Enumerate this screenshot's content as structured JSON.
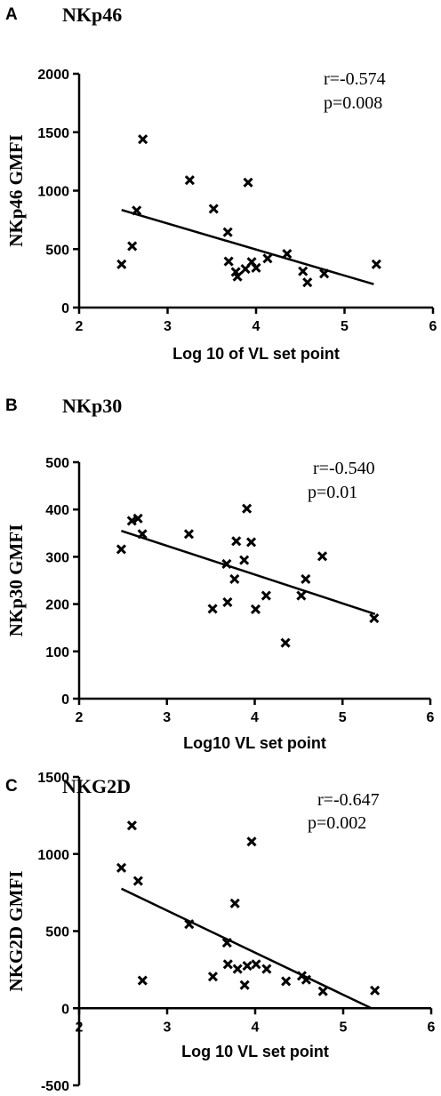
{
  "panels": [
    {
      "letter": "A",
      "title": "NKp46",
      "r_text": "r=-0.574",
      "p_text": "p=0.008"
    },
    {
      "letter": "B",
      "title": "NKp30",
      "r_text": "r=-0.540",
      "p_text": "p=0.01"
    },
    {
      "letter": "C",
      "title": "NKG2D",
      "r_text": "r=-0.647",
      "p_text": "p=0.002"
    }
  ],
  "chart_data": [
    {
      "type": "scatter",
      "title": "NKp46",
      "xlabel": "Log 10 of VL set point",
      "ylabel": "NKp46 GMFI",
      "xlim": [
        2,
        6
      ],
      "ylim": [
        0,
        2000
      ],
      "xticks": [
        2,
        3,
        4,
        5,
        6
      ],
      "yticks": [
        0,
        500,
        1000,
        1500,
        2000
      ],
      "marker": "x",
      "points": [
        {
          "x": 2.48,
          "y": 370
        },
        {
          "x": 2.6,
          "y": 525
        },
        {
          "x": 2.65,
          "y": 830
        },
        {
          "x": 2.72,
          "y": 1440
        },
        {
          "x": 3.25,
          "y": 1090
        },
        {
          "x": 3.52,
          "y": 845
        },
        {
          "x": 3.68,
          "y": 645
        },
        {
          "x": 3.69,
          "y": 395
        },
        {
          "x": 3.77,
          "y": 305
        },
        {
          "x": 3.79,
          "y": 265
        },
        {
          "x": 3.88,
          "y": 330
        },
        {
          "x": 3.91,
          "y": 1070
        },
        {
          "x": 3.95,
          "y": 390
        },
        {
          "x": 4.0,
          "y": 340
        },
        {
          "x": 4.13,
          "y": 420
        },
        {
          "x": 4.35,
          "y": 460
        },
        {
          "x": 4.53,
          "y": 310
        },
        {
          "x": 4.58,
          "y": 215
        },
        {
          "x": 4.77,
          "y": 290
        },
        {
          "x": 5.36,
          "y": 370
        }
      ],
      "fit_line": {
        "x": [
          2.48,
          5.33
        ],
        "y": [
          835,
          200
        ]
      },
      "annotations": [
        "r=-0.574",
        "p=0.008"
      ]
    },
    {
      "type": "scatter",
      "title": "NKp30",
      "xlabel": "Log10 VL set point",
      "ylabel": "NKp30 GMFI",
      "xlim": [
        2,
        6
      ],
      "ylim": [
        0,
        500
      ],
      "xticks": [
        2,
        3,
        4,
        5,
        6
      ],
      "yticks": [
        0,
        100,
        200,
        300,
        400,
        500
      ],
      "marker": "x",
      "points": [
        {
          "x": 2.48,
          "y": 316
        },
        {
          "x": 2.6,
          "y": 376
        },
        {
          "x": 2.67,
          "y": 381
        },
        {
          "x": 2.72,
          "y": 348
        },
        {
          "x": 3.25,
          "y": 348
        },
        {
          "x": 3.52,
          "y": 190
        },
        {
          "x": 3.68,
          "y": 285
        },
        {
          "x": 3.69,
          "y": 204
        },
        {
          "x": 3.77,
          "y": 253
        },
        {
          "x": 3.79,
          "y": 333
        },
        {
          "x": 3.88,
          "y": 293
        },
        {
          "x": 3.91,
          "y": 402
        },
        {
          "x": 3.96,
          "y": 331
        },
        {
          "x": 4.01,
          "y": 189
        },
        {
          "x": 4.13,
          "y": 218
        },
        {
          "x": 4.35,
          "y": 118
        },
        {
          "x": 4.53,
          "y": 218
        },
        {
          "x": 4.58,
          "y": 253
        },
        {
          "x": 4.77,
          "y": 301
        },
        {
          "x": 5.36,
          "y": 170
        }
      ],
      "fit_line": {
        "x": [
          2.48,
          5.37
        ],
        "y": [
          355,
          179
        ]
      },
      "annotations": [
        "r=-0.540",
        "p=0.01"
      ]
    },
    {
      "type": "scatter",
      "title": "NKG2D",
      "xlabel": "Log 10 VL set point",
      "ylabel": "NKG2D GMFI",
      "xlim": [
        2,
        6
      ],
      "ylim": [
        -500,
        1500
      ],
      "xticks": [
        2,
        3,
        4,
        5,
        6
      ],
      "yticks": [
        -500,
        0,
        500,
        1000,
        1500
      ],
      "marker": "x",
      "points": [
        {
          "x": 2.48,
          "y": 910
        },
        {
          "x": 2.6,
          "y": 1185
        },
        {
          "x": 2.67,
          "y": 825
        },
        {
          "x": 2.72,
          "y": 180
        },
        {
          "x": 3.25,
          "y": 545
        },
        {
          "x": 3.52,
          "y": 205
        },
        {
          "x": 3.68,
          "y": 425
        },
        {
          "x": 3.69,
          "y": 285
        },
        {
          "x": 3.77,
          "y": 680
        },
        {
          "x": 3.8,
          "y": 255
        },
        {
          "x": 3.88,
          "y": 150
        },
        {
          "x": 3.91,
          "y": 275
        },
        {
          "x": 3.96,
          "y": 1080
        },
        {
          "x": 4.01,
          "y": 285
        },
        {
          "x": 4.13,
          "y": 255
        },
        {
          "x": 4.35,
          "y": 175
        },
        {
          "x": 4.53,
          "y": 210
        },
        {
          "x": 4.58,
          "y": 185
        },
        {
          "x": 4.77,
          "y": 110
        },
        {
          "x": 5.36,
          "y": 115
        }
      ],
      "fit_line": {
        "x": [
          2.48,
          5.32
        ],
        "y": [
          775,
          0
        ]
      },
      "annotations": [
        "r=-0.647",
        "p=0.002"
      ]
    }
  ]
}
